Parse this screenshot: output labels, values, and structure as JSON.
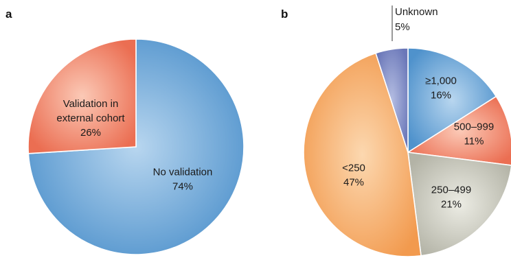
{
  "chart_data": [
    {
      "type": "pie",
      "panel_label": "a",
      "slices": [
        {
          "label": "No validation",
          "value_text": "74%",
          "value": 74,
          "color": "#5a9fd6"
        },
        {
          "label": "Validation in external cohort",
          "label_lines": [
            "Validation in",
            "external cohort"
          ],
          "value_text": "26%",
          "value": 26,
          "color": "#ef8063"
        }
      ]
    },
    {
      "type": "pie",
      "panel_label": "b",
      "slices": [
        {
          "label": "≥1,000",
          "value_text": "16%",
          "value": 16,
          "color": "#5a9fd6"
        },
        {
          "label": "500–999",
          "value_text": "11%",
          "value": 11,
          "color": "#ef8063"
        },
        {
          "label": "250–499",
          "value_text": "21%",
          "value": 21,
          "color": "#c8c8bc"
        },
        {
          "label": "<250",
          "value_text": "47%",
          "value": 47,
          "color": "#f5a661"
        },
        {
          "label": "Unknown",
          "value_text": "5%",
          "value": 5,
          "color": "#7a86c2"
        }
      ]
    }
  ]
}
